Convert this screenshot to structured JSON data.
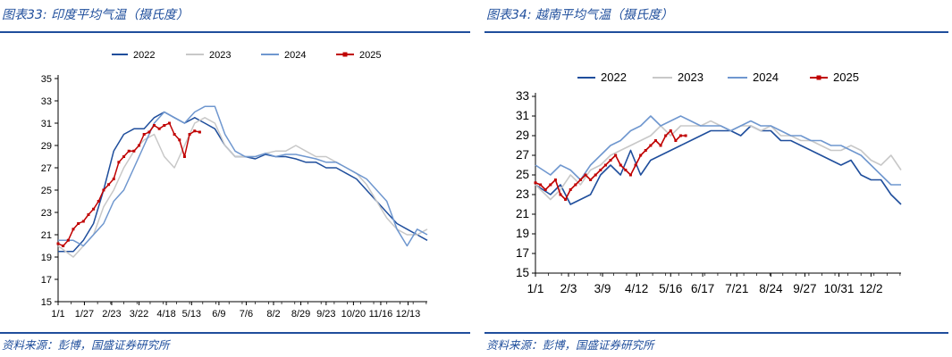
{
  "charts": [
    {
      "figure_title": "图表33: 印度平均气温（摄氏度）",
      "source": "资料来源：彭博，国盛证券研究所"
    },
    {
      "figure_title": "图表34: 越南平均气温（摄氏度）",
      "source": "资料来源：彭博，国盛证券研究所"
    }
  ],
  "colors": {
    "2022": "#1f4e9c",
    "2023": "#c8c8c8",
    "2024": "#6f97cf",
    "2025": "#c00000",
    "brand": "#1f4e9c"
  },
  "chart_data": [
    {
      "type": "line",
      "title": "印度平均气温（摄氏度）",
      "xlabel": "",
      "ylabel": "",
      "ylim": [
        15,
        35
      ],
      "yticks": [
        "15",
        "17",
        "19",
        "21",
        "23",
        "25",
        "27",
        "29",
        "31",
        "33",
        "35"
      ],
      "x_tick_labels": [
        "1/1",
        "1/27",
        "2/23",
        "3/22",
        "4/18",
        "5/13",
        "6/9",
        "7/6",
        "8/2",
        "8/29",
        "9/23",
        "10/20",
        "11/16",
        "12/13"
      ],
      "x_tick_days": [
        0,
        26,
        53,
        80,
        107,
        132,
        159,
        186,
        213,
        240,
        265,
        292,
        319,
        346
      ],
      "x_range_days": [
        0,
        365
      ],
      "legend": [
        "2022",
        "2023",
        "2024",
        "2025"
      ],
      "series": [
        {
          "name": "2022",
          "days": [
            0,
            15,
            25,
            35,
            45,
            55,
            65,
            75,
            85,
            95,
            105,
            115,
            125,
            135,
            145,
            155,
            165,
            175,
            185,
            195,
            205,
            215,
            225,
            235,
            245,
            255,
            265,
            275,
            285,
            295,
            305,
            315,
            325,
            335,
            345,
            355,
            365
          ],
          "values": [
            19.5,
            19.5,
            20.5,
            22,
            25,
            28.5,
            30,
            30.5,
            30.5,
            31.5,
            32,
            31.5,
            31,
            31.5,
            31,
            30.5,
            29,
            28,
            28,
            27.8,
            28.2,
            28,
            28,
            27.8,
            27.5,
            27.5,
            27,
            27,
            26.5,
            26,
            25,
            24,
            23,
            22,
            21.5,
            21,
            20.5
          ]
        },
        {
          "name": "2023",
          "days": [
            0,
            15,
            25,
            35,
            45,
            55,
            65,
            75,
            85,
            95,
            105,
            115,
            125,
            135,
            145,
            155,
            165,
            175,
            185,
            195,
            205,
            215,
            225,
            235,
            245,
            255,
            265,
            275,
            285,
            295,
            305,
            315,
            325,
            335,
            345,
            355,
            365
          ],
          "values": [
            20,
            19,
            20,
            21,
            23.5,
            25,
            27,
            28.5,
            29.5,
            30,
            28,
            27,
            29,
            31,
            31.5,
            31,
            29,
            28,
            28,
            28,
            28.3,
            28.5,
            28.5,
            29,
            28.5,
            28,
            28,
            27.5,
            27,
            26.5,
            25.5,
            24,
            22.5,
            21.5,
            21,
            21,
            21.5
          ]
        },
        {
          "name": "2024",
          "days": [
            0,
            15,
            25,
            35,
            45,
            55,
            65,
            75,
            85,
            95,
            105,
            115,
            125,
            135,
            145,
            155,
            165,
            175,
            185,
            195,
            205,
            215,
            225,
            235,
            245,
            255,
            265,
            275,
            285,
            295,
            305,
            315,
            325,
            335,
            345,
            355,
            365
          ],
          "values": [
            20.5,
            20.5,
            20,
            21,
            22,
            24,
            25,
            27,
            29,
            31,
            32,
            31.5,
            31,
            32,
            32.5,
            32.5,
            30,
            28.5,
            28,
            28,
            28.3,
            28,
            28.2,
            28.2,
            28,
            27.8,
            27.5,
            27.5,
            27,
            26.5,
            26,
            25,
            24,
            21.5,
            20,
            21.5,
            21
          ]
        },
        {
          "name": "2025",
          "days": [
            0,
            5,
            10,
            15,
            20,
            25,
            30,
            35,
            40,
            45,
            50,
            55,
            60,
            65,
            70,
            75,
            80,
            85,
            90,
            95,
            100,
            105,
            110,
            115,
            120,
            125,
            130,
            135,
            140
          ],
          "values": [
            20.2,
            20,
            20.5,
            21.5,
            22,
            22.2,
            22.8,
            23.3,
            24,
            25,
            25.5,
            26,
            27.5,
            28,
            28.5,
            28.5,
            29,
            30,
            30.2,
            30.8,
            30.5,
            30.8,
            31,
            30,
            29.5,
            28,
            30,
            30.3,
            30.2
          ]
        }
      ]
    },
    {
      "type": "line",
      "title": "越南平均气温（摄氏度）",
      "xlabel": "",
      "ylabel": "",
      "ylim": [
        15,
        33
      ],
      "yticks": [
        "15",
        "17",
        "19",
        "21",
        "23",
        "25",
        "27",
        "29",
        "31",
        "33"
      ],
      "x_tick_labels": [
        "1/1",
        "2/3",
        "3/9",
        "4/12",
        "5/16",
        "6/17",
        "7/21",
        "8/24",
        "9/27",
        "10/31",
        "12/2"
      ],
      "x_tick_days": [
        0,
        33,
        67,
        101,
        135,
        167,
        201,
        235,
        269,
        303,
        335
      ],
      "x_range_days": [
        0,
        365
      ],
      "legend": [
        "2022",
        "2023",
        "2024",
        "2025"
      ],
      "series": [
        {
          "name": "2022",
          "days": [
            0,
            15,
            25,
            35,
            45,
            55,
            65,
            75,
            85,
            95,
            105,
            115,
            125,
            135,
            145,
            155,
            165,
            175,
            185,
            195,
            205,
            215,
            225,
            235,
            245,
            255,
            265,
            275,
            285,
            295,
            305,
            315,
            325,
            335,
            345,
            355,
            365
          ],
          "values": [
            24,
            23,
            24,
            22,
            22.5,
            23,
            25,
            26,
            25,
            27.5,
            25,
            26.5,
            27,
            27.5,
            28,
            28.5,
            29,
            29.5,
            29.5,
            29.5,
            29,
            30,
            29.5,
            29.5,
            28.5,
            28.5,
            28,
            27.5,
            27,
            26.5,
            26,
            26.5,
            25,
            24.5,
            24.5,
            23,
            22
          ]
        },
        {
          "name": "2023",
          "days": [
            0,
            15,
            25,
            35,
            45,
            55,
            65,
            75,
            85,
            95,
            105,
            115,
            125,
            135,
            145,
            155,
            165,
            175,
            185,
            195,
            205,
            215,
            225,
            235,
            245,
            255,
            265,
            275,
            285,
            295,
            305,
            315,
            325,
            335,
            345,
            355,
            365
          ],
          "values": [
            24,
            22.5,
            23.5,
            25,
            24,
            25.5,
            26,
            27,
            27.5,
            28,
            28.5,
            29,
            30,
            29,
            30,
            30,
            30,
            30.5,
            30,
            29.5,
            30,
            30,
            29.5,
            30,
            29,
            29,
            28.5,
            28.5,
            28,
            27.5,
            27.5,
            28,
            27.5,
            26.5,
            26,
            27,
            25.5
          ]
        },
        {
          "name": "2024",
          "days": [
            0,
            15,
            25,
            35,
            45,
            55,
            65,
            75,
            85,
            95,
            105,
            115,
            125,
            135,
            145,
            155,
            165,
            175,
            185,
            195,
            205,
            215,
            225,
            235,
            245,
            255,
            265,
            275,
            285,
            295,
            305,
            315,
            325,
            335,
            345,
            355,
            365
          ],
          "values": [
            26,
            25,
            26,
            25.5,
            24.5,
            26,
            27,
            28,
            28.5,
            29.5,
            30,
            31,
            30,
            30.5,
            31,
            30.5,
            30,
            30,
            30,
            29.5,
            30,
            30.5,
            30,
            30,
            29.5,
            29,
            29,
            28.5,
            28.5,
            28,
            28,
            27.5,
            27,
            26,
            25,
            24,
            24
          ]
        },
        {
          "name": "2025",
          "days": [
            0,
            5,
            10,
            15,
            20,
            25,
            30,
            35,
            40,
            45,
            50,
            55,
            60,
            65,
            70,
            75,
            80,
            85,
            90,
            95,
            100,
            105,
            110,
            115,
            120,
            125,
            130,
            135,
            140,
            145,
            150
          ],
          "values": [
            24.2,
            24,
            23.5,
            24,
            24.5,
            23,
            22.5,
            23.5,
            24,
            24.5,
            25,
            24.5,
            25,
            25.5,
            26,
            26.5,
            27,
            26,
            25.5,
            25,
            26,
            27,
            27.5,
            28,
            28.5,
            28,
            29,
            29.5,
            28.5,
            29,
            29
          ]
        }
      ]
    }
  ]
}
